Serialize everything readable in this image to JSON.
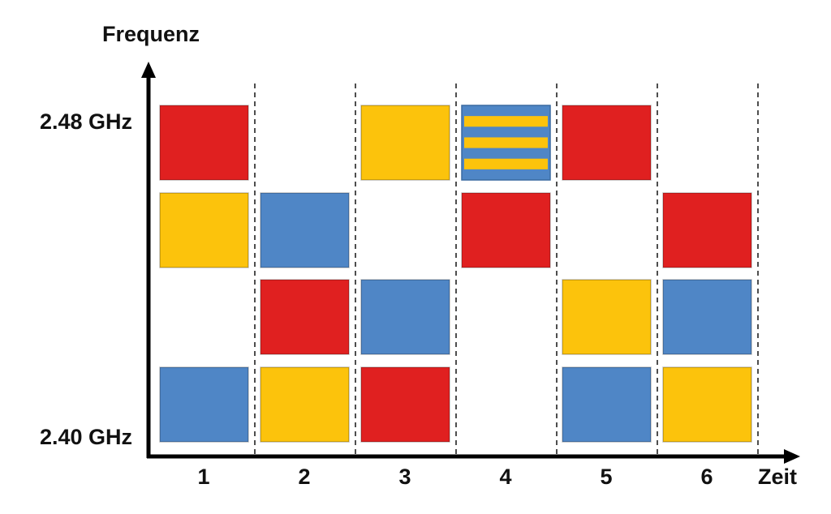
{
  "y_axis": {
    "title": "Frequenz",
    "top_label": "2.48 GHz",
    "bottom_label": "2.40 GHz"
  },
  "x_axis": {
    "title": "Zeit"
  },
  "slots": [
    {
      "label": "1",
      "cells": [
        "#e02020",
        "#fcc30c",
        null,
        "#4f86c6"
      ]
    },
    {
      "label": "2",
      "cells": [
        null,
        "#4f86c6",
        "#e02020",
        "#fcc30c"
      ]
    },
    {
      "label": "3",
      "cells": [
        "#fcc30c",
        null,
        "#4f86c6",
        "#e02020"
      ]
    },
    {
      "label": "4",
      "cells": [
        [
          "#4f86c6",
          "#fcc30c"
        ],
        "#e02020",
        null,
        null
      ]
    },
    {
      "label": "5",
      "cells": [
        "#e02020",
        null,
        "#fcc30c",
        "#4f86c6"
      ]
    },
    {
      "label": "6",
      "cells": [
        null,
        "#e02020",
        "#4f86c6",
        "#fcc30c"
      ]
    }
  ]
}
